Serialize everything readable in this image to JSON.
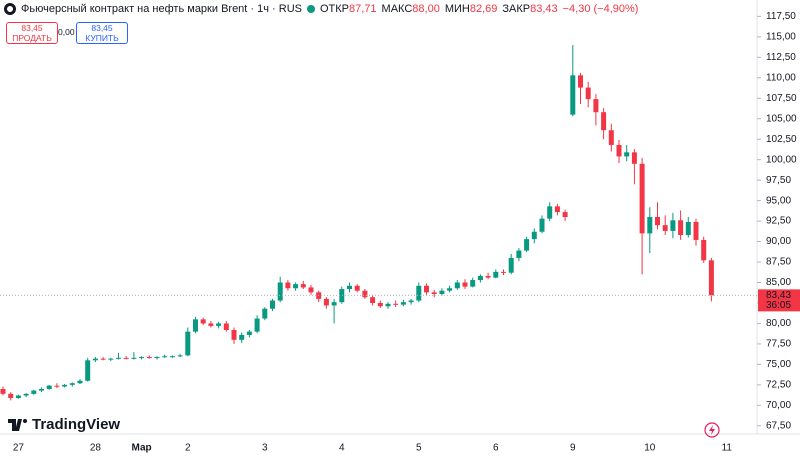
{
  "header": {
    "title": "Фьючерсный контракт на нефть марки Brent · 1ч · RUS",
    "open": {
      "label": "ОТКР",
      "value": "87,71"
    },
    "high": {
      "label": "МАКС",
      "value": "88,00"
    },
    "low": {
      "label": "МИН",
      "value": "82,69"
    },
    "close": {
      "label": "ЗАКР",
      "value": "83,43"
    },
    "change": "−4,30 (−4,90%)",
    "sell": {
      "price": "83,45",
      "label": "ПРОДАТЬ"
    },
    "spread": "0,00",
    "buy": {
      "price": "83,45",
      "label": "КУПИТЬ"
    }
  },
  "logo": "TradingView",
  "chart_data": {
    "type": "candlestick",
    "up_color": "#089981",
    "down_color": "#f23645",
    "categories": [
      null,
      null,
      "27",
      null,
      null,
      null,
      null,
      null,
      null,
      null,
      null,
      null,
      "28",
      null,
      null,
      null,
      null,
      null,
      "Мар",
      null,
      null,
      null,
      null,
      null,
      "2",
      null,
      null,
      null,
      null,
      null,
      null,
      null,
      null,
      null,
      "3",
      null,
      null,
      null,
      null,
      null,
      null,
      null,
      null,
      null,
      "4",
      null,
      null,
      null,
      null,
      null,
      null,
      null,
      null,
      null,
      "5",
      null,
      null,
      null,
      null,
      null,
      null,
      null,
      null,
      null,
      "6",
      null,
      null,
      null,
      null,
      null,
      null,
      null,
      null,
      null,
      "9",
      null,
      null,
      null,
      null,
      null,
      null,
      null,
      null,
      null,
      "10",
      null,
      null,
      null,
      null,
      null,
      null,
      null,
      null,
      null,
      "11"
    ],
    "open": [
      72.0,
      71.4,
      70.9,
      71.2,
      71.4,
      71.8,
      72.0,
      72.4,
      72.3,
      72.5,
      72.7,
      73.0,
      75.5,
      75.7,
      75.6,
      75.7,
      75.8,
      75.7,
      75.8,
      75.9,
      75.8,
      75.9,
      75.9,
      76.0,
      76.1,
      79.0,
      80.5,
      80.0,
      79.7,
      80.0,
      79.2,
      78.0,
      78.6,
      79.0,
      80.6,
      81.8,
      82.8,
      85.0,
      84.3,
      84.8,
      84.4,
      83.8,
      83.0,
      82.2,
      82.6,
      84.2,
      84.6,
      84.0,
      83.2,
      82.5,
      82.1,
      82.4,
      82.3,
      82.6,
      82.8,
      84.6,
      83.8,
      83.6,
      84.0,
      84.3,
      85.0,
      84.5,
      85.3,
      85.8,
      85.6,
      86.3,
      86.2,
      88.0,
      88.9,
      90.3,
      91.2,
      92.8,
      94.3,
      93.6,
      105.5,
      110.3,
      108.8,
      107.4,
      105.8,
      103.6,
      101.8,
      100.4,
      100.9,
      99.5,
      91.0,
      93.0,
      92.0,
      91.3,
      92.6,
      90.8,
      92.4,
      90.2,
      87.71,
      null,
      null
    ],
    "high": [
      72.3,
      71.6,
      71.3,
      71.5,
      71.9,
      72.2,
      72.5,
      72.7,
      72.6,
      72.8,
      73.2,
      75.8,
      75.9,
      75.9,
      75.8,
      76.4,
      76.0,
      76.5,
      76.0,
      76.1,
      76.0,
      76.2,
      76.1,
      76.3,
      79.5,
      80.8,
      80.7,
      80.3,
      80.2,
      80.3,
      79.5,
      78.9,
      79.2,
      81.0,
      82.0,
      83.0,
      85.7,
      85.3,
      85.0,
      85.2,
      84.7,
      84.0,
      83.2,
      83.0,
      84.5,
      85.0,
      84.8,
      84.2,
      83.5,
      82.8,
      82.6,
      82.8,
      82.9,
      83.0,
      85.0,
      84.9,
      84.1,
      84.3,
      84.6,
      85.3,
      85.4,
      85.6,
      86.0,
      86.2,
      86.6,
      86.6,
      88.5,
      89.2,
      90.6,
      91.6,
      93.2,
      94.8,
      94.6,
      93.9,
      114.0,
      110.6,
      109.5,
      108.0,
      106.3,
      104.4,
      102.4,
      101.8,
      101.3,
      100.2,
      94.2,
      94.8,
      93.2,
      93.5,
      93.8,
      93.0,
      92.8,
      90.6,
      88.0,
      null,
      null
    ],
    "low": [
      71.2,
      70.6,
      70.8,
      71.0,
      71.3,
      71.6,
      71.9,
      72.1,
      72.2,
      72.3,
      72.6,
      72.9,
      75.3,
      75.5,
      75.4,
      75.6,
      75.6,
      75.6,
      75.6,
      75.7,
      75.6,
      75.8,
      75.8,
      75.9,
      76.0,
      78.8,
      79.8,
      79.5,
      79.4,
      79.0,
      77.5,
      77.6,
      78.3,
      78.8,
      80.4,
      81.5,
      82.6,
      84.0,
      84.0,
      84.2,
      83.5,
      82.6,
      81.8,
      80.0,
      82.4,
      83.8,
      83.8,
      83.0,
      82.2,
      81.9,
      81.8,
      82.0,
      82.1,
      82.3,
      82.6,
      83.5,
      83.2,
      83.4,
      83.8,
      84.1,
      84.2,
      84.4,
      85.0,
      85.4,
      85.5,
      85.9,
      86.0,
      87.6,
      88.7,
      89.8,
      91.0,
      92.5,
      93.2,
      92.5,
      105.3,
      106.8,
      106.4,
      104.2,
      102.5,
      101.0,
      99.6,
      99.8,
      97.0,
      86.0,
      88.6,
      91.5,
      90.8,
      90.4,
      90.2,
      90.5,
      89.5,
      87.4,
      82.69,
      null,
      null
    ],
    "close": [
      71.4,
      70.9,
      71.2,
      71.4,
      71.8,
      72.0,
      72.4,
      72.3,
      72.5,
      72.7,
      73.0,
      75.5,
      75.7,
      75.6,
      75.7,
      75.8,
      75.7,
      75.8,
      75.9,
      75.8,
      75.9,
      76.0,
      76.0,
      76.1,
      79.0,
      80.5,
      80.0,
      79.7,
      80.0,
      79.2,
      78.0,
      78.6,
      79.0,
      80.6,
      81.8,
      82.8,
      85.0,
      84.3,
      84.8,
      84.4,
      83.8,
      83.0,
      82.2,
      82.6,
      84.2,
      84.6,
      84.0,
      83.2,
      82.5,
      82.1,
      82.4,
      82.3,
      82.6,
      82.8,
      84.6,
      83.8,
      83.6,
      84.0,
      84.3,
      85.0,
      84.5,
      85.3,
      85.8,
      85.6,
      86.3,
      86.2,
      88.0,
      88.9,
      90.3,
      91.2,
      92.8,
      94.3,
      93.6,
      93.0,
      110.3,
      108.8,
      107.4,
      105.8,
      103.6,
      101.8,
      100.4,
      100.9,
      99.5,
      91.0,
      93.0,
      92.0,
      91.3,
      92.6,
      90.8,
      92.4,
      90.2,
      87.71,
      83.43,
      null,
      null
    ],
    "ylim": [
      66.5,
      119.5
    ],
    "yticks": [
      {
        "value": 67.5,
        "label": "67,50"
      },
      {
        "value": 70,
        "label": "70,00"
      },
      {
        "value": 72.5,
        "label": "72,50"
      },
      {
        "value": 75,
        "label": "75,00"
      },
      {
        "value": 77.5,
        "label": "77,50"
      },
      {
        "value": 80,
        "label": "80,00"
      },
      {
        "value": 82.5,
        "label": "82,50"
      },
      {
        "value": 85,
        "label": "85,00"
      },
      {
        "value": 87.5,
        "label": "87,50"
      },
      {
        "value": 90,
        "label": "90,00"
      },
      {
        "value": 92.5,
        "label": "92,50"
      },
      {
        "value": 95,
        "label": "95,00"
      },
      {
        "value": 97.5,
        "label": "97,50"
      },
      {
        "value": 100,
        "label": "100,00"
      },
      {
        "value": 102.5,
        "label": "102,50"
      },
      {
        "value": 105,
        "label": "105,00"
      },
      {
        "value": 107.5,
        "label": "107,50"
      },
      {
        "value": 110,
        "label": "110,00"
      },
      {
        "value": 112.5,
        "label": "112,50"
      },
      {
        "value": 115,
        "label": "115,00"
      },
      {
        "value": 117.5,
        "label": "117,50"
      }
    ],
    "last_price": {
      "value": 83.43,
      "label": "83,43"
    },
    "countdown": "36:05"
  }
}
